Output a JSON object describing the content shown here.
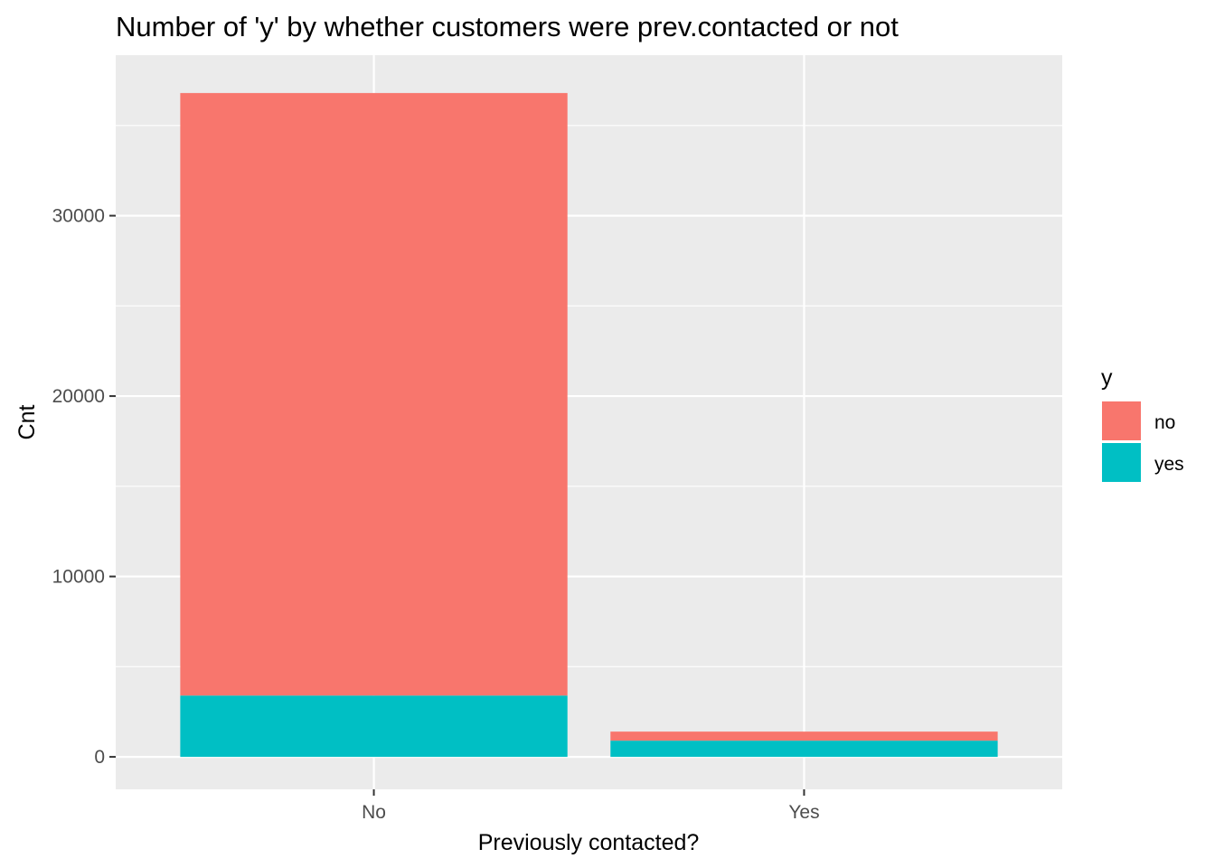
{
  "chart_data": {
    "type": "bar",
    "stacked": true,
    "title": "Number of 'y' by whether customers were prev.contacted or not",
    "xlabel": "Previously contacted?",
    "ylabel": "Cnt",
    "categories": [
      "No",
      "Yes"
    ],
    "series": [
      {
        "name": "no",
        "color": "#F8766D",
        "values": [
          33400,
          500
        ]
      },
      {
        "name": "yes",
        "color": "#00BFC4",
        "values": [
          3400,
          900
        ]
      }
    ],
    "ylim": [
      -1800,
      38900
    ],
    "yticks": [
      0,
      10000,
      20000,
      30000
    ],
    "ytick_labels": [
      "0",
      "10000",
      "20000",
      "30000"
    ],
    "grid": true,
    "legend": {
      "title": "y",
      "position": "right"
    },
    "panel_color": "#EBEBEB",
    "grid_color": "#FFFFFF"
  }
}
